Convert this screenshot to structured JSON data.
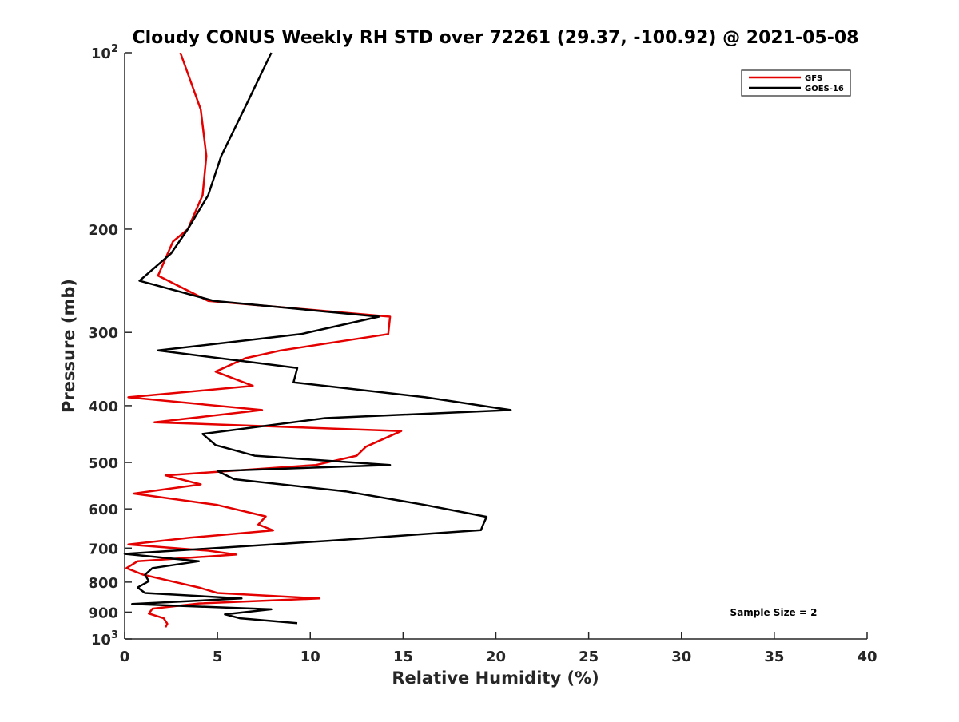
{
  "chart_data": {
    "type": "line",
    "title": "Cloudy CONUS Weekly RH STD over 72261 (29.37, -100.92) @ 2021-05-08",
    "xlabel": "Relative Humidity (%)",
    "ylabel": "Pressure (mb)",
    "xlim": [
      0,
      40
    ],
    "ylim": [
      100,
      1000
    ],
    "yscale": "log",
    "yaxis_reversed": true,
    "xticks": [
      0,
      5,
      10,
      15,
      20,
      25,
      30,
      35,
      40
    ],
    "yticks": [
      {
        "value": 100,
        "base": "10",
        "exp": "2"
      },
      {
        "value": 200,
        "label": "200"
      },
      {
        "value": 300,
        "label": "300"
      },
      {
        "value": 400,
        "label": "400"
      },
      {
        "value": 500,
        "label": "500"
      },
      {
        "value": 600,
        "label": "600"
      },
      {
        "value": 700,
        "label": "700"
      },
      {
        "value": 800,
        "label": "800"
      },
      {
        "value": 900,
        "label": "900"
      },
      {
        "value": 1000,
        "base": "10",
        "exp": "3"
      }
    ],
    "legend_position": "top-right",
    "annotation": "Sample Size = 2",
    "series": [
      {
        "name": "GFS",
        "color": "#e50000",
        "points": [
          [
            3.0,
            100
          ],
          [
            4.1,
            125
          ],
          [
            4.4,
            150
          ],
          [
            4.2,
            175
          ],
          [
            3.4,
            200
          ],
          [
            2.6,
            210
          ],
          [
            1.8,
            240
          ],
          [
            4.5,
            265
          ],
          [
            14.3,
            282
          ],
          [
            14.2,
            302
          ],
          [
            8.4,
            322
          ],
          [
            6.5,
            332
          ],
          [
            4.9,
            350
          ],
          [
            6.9,
            370
          ],
          [
            0.2,
            387
          ],
          [
            7.4,
            407
          ],
          [
            1.6,
            427
          ],
          [
            14.9,
            442
          ],
          [
            13.0,
            470
          ],
          [
            12.5,
            487
          ],
          [
            10.3,
            505
          ],
          [
            2.2,
            526
          ],
          [
            4.1,
            545
          ],
          [
            0.5,
            565
          ],
          [
            5.0,
            591
          ],
          [
            7.6,
            618
          ],
          [
            7.2,
            638
          ],
          [
            8.0,
            653
          ],
          [
            3.5,
            672
          ],
          [
            0.2,
            690
          ],
          [
            4.5,
            707
          ],
          [
            6.0,
            718
          ],
          [
            0.7,
            737
          ],
          [
            0.1,
            757
          ],
          [
            1.0,
            777
          ],
          [
            2.5,
            797
          ],
          [
            4.0,
            817
          ],
          [
            5.0,
            835
          ],
          [
            10.5,
            853
          ],
          [
            4.0,
            870
          ],
          [
            1.5,
            888
          ],
          [
            1.3,
            905
          ],
          [
            2.1,
            922
          ],
          [
            2.3,
            942
          ],
          [
            2.2,
            955
          ]
        ]
      },
      {
        "name": "GOES-16",
        "color": "#000000",
        "points": [
          [
            7.9,
            100
          ],
          [
            6.7,
            120
          ],
          [
            5.2,
            150
          ],
          [
            4.5,
            175
          ],
          [
            3.4,
            200
          ],
          [
            2.5,
            220
          ],
          [
            0.8,
            245
          ],
          [
            4.8,
            265
          ],
          [
            13.7,
            282
          ],
          [
            9.5,
            302
          ],
          [
            1.8,
            322
          ],
          [
            9.3,
            345
          ],
          [
            9.1,
            365
          ],
          [
            16.2,
            387
          ],
          [
            20.8,
            407
          ],
          [
            10.8,
            420
          ],
          [
            4.2,
            447
          ],
          [
            4.9,
            467
          ],
          [
            7.0,
            487
          ],
          [
            14.3,
            505
          ],
          [
            5.0,
            517
          ],
          [
            5.9,
            534
          ],
          [
            11.9,
            560
          ],
          [
            16.2,
            591
          ],
          [
            19.5,
            619
          ],
          [
            19.3,
            640
          ],
          [
            19.2,
            652
          ],
          [
            11.0,
            680
          ],
          [
            0.0,
            716
          ],
          [
            4.0,
            737
          ],
          [
            1.5,
            757
          ],
          [
            1.1,
            777
          ],
          [
            1.3,
            797
          ],
          [
            0.7,
            817
          ],
          [
            1.1,
            835
          ],
          [
            6.3,
            853
          ],
          [
            0.4,
            872
          ],
          [
            7.9,
            890
          ],
          [
            5.4,
            908
          ],
          [
            6.2,
            922
          ],
          [
            9.3,
            940
          ]
        ]
      }
    ]
  }
}
